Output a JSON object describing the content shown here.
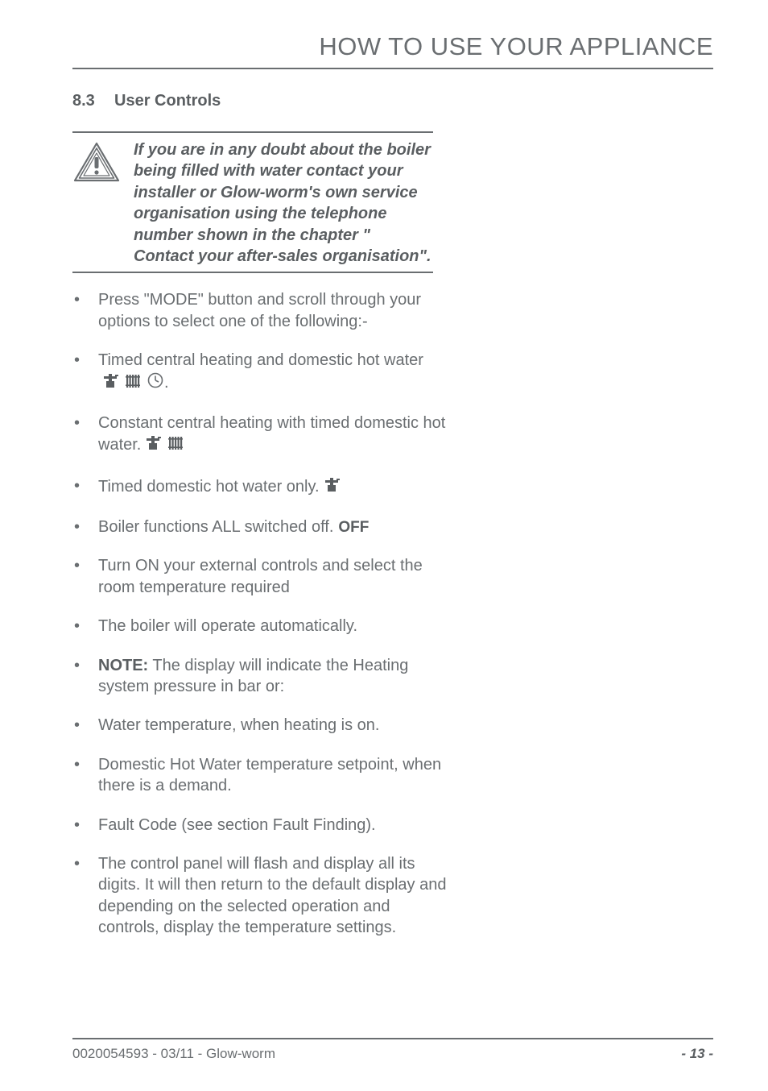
{
  "header": {
    "title": "HOW TO USE YOUR APPLIANCE"
  },
  "section": {
    "number": "8.3",
    "title": "User Controls"
  },
  "warning": {
    "text": "If you are in any doubt about the boiler being filled with water contact your installer or Glow-worm's own service organisation using the telephone number shown in the chapter \" Contact your after-sales organisation\"."
  },
  "items": [
    {
      "text": "Press  \"MODE\" button and scroll through your options to select one of the following:-",
      "icons": []
    },
    {
      "text": "Timed central heating and domestic hot water",
      "icons": [
        "tap",
        "radiator",
        "clock"
      ],
      "trailing": "."
    },
    {
      "text": "Constant central heating with timed domestic hot water.",
      "icons": [
        "tap",
        "radiator"
      ]
    },
    {
      "text": "Timed domestic hot water only.",
      "icons": [
        "tap"
      ]
    },
    {
      "text": "Boiler functions ALL switched off.",
      "icons": [
        "off"
      ]
    },
    {
      "text": "Turn ON your external controls and select the room temperature required",
      "icons": []
    },
    {
      "text": "The boiler will operate automatically.",
      "icons": []
    },
    {
      "note_label": "NOTE:",
      "text": " The display will indicate the Heating system pressure in bar or:",
      "icons": []
    },
    {
      "text": "Water temperature, when heating is on.",
      "icons": []
    },
    {
      "text": "Domestic Hot Water temperature setpoint, when there is a demand.",
      "icons": []
    },
    {
      "text": "Fault Code (see section Fault Finding).",
      "icons": []
    },
    {
      "text": "The control panel will flash and display all its digits. It will then return to the default display and depending on the selected operation and controls, display the temperature settings.",
      "icons": []
    }
  ],
  "footer": {
    "left": "0020054593 - 03/11 - Glow-worm",
    "right": "- 13 -"
  },
  "colors": {
    "text": "#6a6e71",
    "bold_text": "#5a5e61",
    "rule": "#6a6e71",
    "background": "#ffffff"
  },
  "typography": {
    "header_size": 31,
    "heading_size": 20,
    "body_size": 20,
    "footer_size": 17
  }
}
